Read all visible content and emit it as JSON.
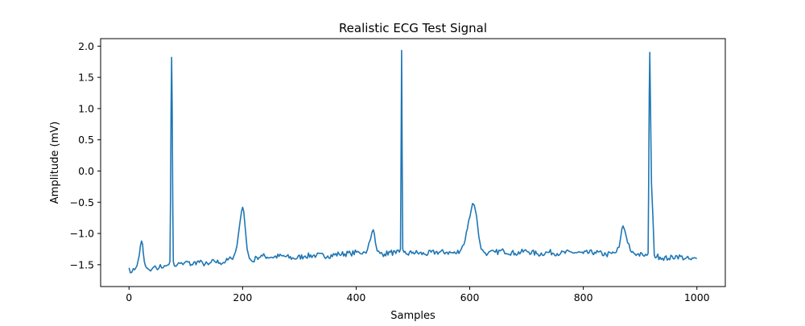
{
  "chart_data": {
    "type": "line",
    "title": "Realistic ECG Test Signal",
    "xlabel": "Samples",
    "ylabel": "Amplitude (mV)",
    "xlim": [
      -50,
      1050
    ],
    "ylim": [
      -1.85,
      2.12
    ],
    "xticks": [
      0,
      200,
      400,
      600,
      800,
      1000
    ],
    "xtick_labels": [
      "0",
      "200",
      "400",
      "600",
      "800",
      "1000"
    ],
    "yticks": [
      -1.5,
      -1.0,
      -0.5,
      0.0,
      0.5,
      1.0,
      1.5,
      2.0
    ],
    "ytick_labels": [
      "−1.5",
      "−1.0",
      "−0.5",
      "0.0",
      "0.5",
      "1.0",
      "1.5",
      "2.0"
    ],
    "grid": false,
    "legend": "none",
    "series": [
      {
        "color": "#1f77b4",
        "x": [
          0,
          5,
          10,
          14,
          18,
          20,
          22,
          24,
          25,
          27,
          29,
          31,
          34,
          38,
          42,
          46,
          50,
          55,
          60,
          65,
          70,
          72,
          73,
          74,
          75,
          76,
          77,
          78,
          80,
          85,
          90,
          95,
          100,
          110,
          120,
          130,
          140,
          150,
          160,
          170,
          180,
          185,
          190,
          195,
          198,
          200,
          202,
          205,
          208,
          212,
          218,
          225,
          235,
          250,
          270,
          290,
          310,
          330,
          350,
          370,
          390,
          405,
          415,
          420,
          425,
          428,
          430,
          432,
          434,
          437,
          442,
          450,
          460,
          470,
          476,
          478,
          479,
          480,
          481,
          482,
          484,
          490,
          500,
          520,
          540,
          560,
          575,
          585,
          592,
          598,
          603,
          605,
          608,
          612,
          616,
          620,
          625,
          632,
          645,
          660,
          680,
          700,
          720,
          740,
          760,
          780,
          800,
          820,
          840,
          850,
          858,
          863,
          866,
          868,
          870,
          873,
          878,
          885,
          895,
          905,
          912,
          914,
          915,
          916,
          917,
          918,
          920,
          925,
          935,
          950,
          965,
          980,
          990,
          1000
        ],
        "y": [
          -1.55,
          -1.62,
          -1.58,
          -1.52,
          -1.35,
          -1.2,
          -1.12,
          -1.18,
          -1.3,
          -1.45,
          -1.52,
          -1.55,
          -1.57,
          -1.6,
          -1.55,
          -1.52,
          -1.58,
          -1.5,
          -1.55,
          -1.52,
          -1.5,
          -1.45,
          -0.5,
          1.0,
          1.82,
          1.0,
          -0.5,
          -1.45,
          -1.52,
          -1.5,
          -1.48,
          -1.5,
          -1.45,
          -1.5,
          -1.45,
          -1.48,
          -1.5,
          -1.44,
          -1.47,
          -1.45,
          -1.4,
          -1.35,
          -1.2,
          -0.85,
          -0.65,
          -0.58,
          -0.65,
          -0.95,
          -1.25,
          -1.4,
          -1.45,
          -1.38,
          -1.36,
          -1.38,
          -1.36,
          -1.4,
          -1.36,
          -1.35,
          -1.36,
          -1.33,
          -1.32,
          -1.3,
          -1.3,
          -1.25,
          -1.1,
          -0.98,
          -0.94,
          -1.0,
          -1.15,
          -1.28,
          -1.32,
          -1.33,
          -1.3,
          -1.32,
          -1.3,
          -1.25,
          0.2,
          1.93,
          0.2,
          -1.25,
          -1.3,
          -1.33,
          -1.3,
          -1.33,
          -1.3,
          -1.3,
          -1.32,
          -1.25,
          -1.1,
          -0.8,
          -0.6,
          -0.52,
          -0.55,
          -0.72,
          -1.05,
          -1.25,
          -1.3,
          -1.32,
          -1.3,
          -1.28,
          -1.32,
          -1.28,
          -1.33,
          -1.3,
          -1.32,
          -1.3,
          -1.32,
          -1.3,
          -1.34,
          -1.32,
          -1.3,
          -1.22,
          -1.05,
          -0.92,
          -0.88,
          -0.95,
          -1.15,
          -1.3,
          -1.33,
          -1.35,
          -1.35,
          -1.32,
          -0.2,
          1.2,
          1.9,
          1.2,
          -0.2,
          -1.35,
          -1.38,
          -1.4,
          -1.36,
          -1.4,
          -1.42,
          -1.4
        ]
      }
    ]
  }
}
